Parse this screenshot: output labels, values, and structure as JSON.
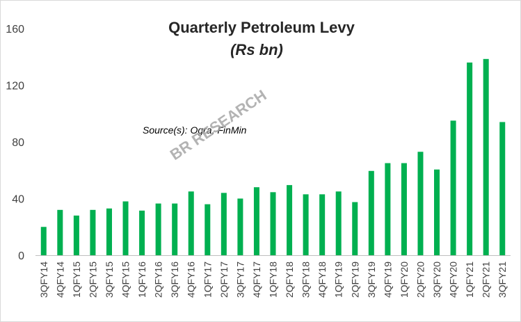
{
  "chart_data": {
    "type": "bar",
    "title": "Quarterly Petroleum Levy",
    "subtitle": "(Rs bn)",
    "annotation": "Source(s): Ogra, FinMin",
    "watermark": "BR RESEARCH",
    "ylim": [
      0,
      160
    ],
    "yticks": [
      0,
      40,
      80,
      120,
      160
    ],
    "grid": false,
    "legend": "none",
    "bar_color": "#00b050",
    "categories": [
      "3QFY14",
      "4QFY14",
      "1QFY15",
      "2QFY15",
      "3QFY15",
      "4QFY15",
      "1QFY16",
      "2QFY16",
      "3QFY16",
      "4QFY16",
      "1QFY17",
      "2QFY17",
      "3QFY17",
      "4QFY17",
      "1QFY18",
      "2QFY18",
      "3QFY18",
      "4QFY18",
      "1QFY19",
      "2QFY19",
      "3QFY19",
      "4QFY19",
      "1QFY20",
      "2QFY20",
      "3QFY20",
      "4QFY20",
      "1QFY21",
      "2QFY21",
      "3QFY21"
    ],
    "values": [
      20,
      32,
      28,
      32,
      33,
      38,
      31.5,
      36.5,
      36.5,
      45,
      36,
      44,
      40,
      48,
      44.5,
      49.5,
      43,
      43,
      45,
      37.5,
      59.5,
      65,
      65,
      73,
      60.5,
      95,
      136,
      138.5,
      94
    ]
  }
}
